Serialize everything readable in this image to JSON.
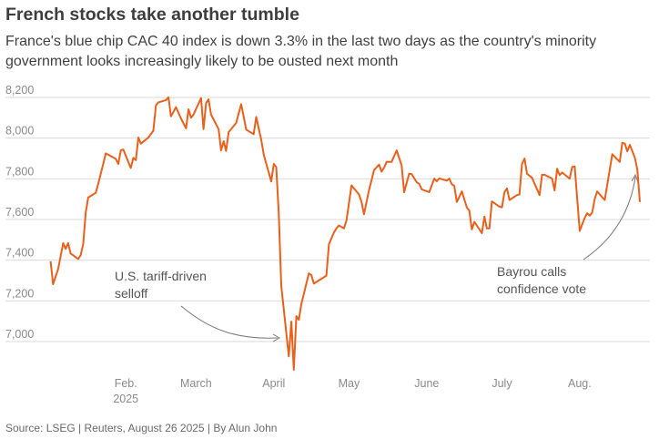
{
  "header": {
    "title": "French stocks take another tumble",
    "subtitle": "France's blue chip CAC 40 index is down 3.3% in the last two days as the country's minority government looks increasingly likely to be ousted next month"
  },
  "footer": {
    "source": "Source: LSEG | Reuters, August 26 2025 | By Alun John"
  },
  "colors": {
    "line": "#e8601c",
    "grid": "#d9d9d9",
    "annotation_arrow": "#777777"
  },
  "chart_data": {
    "type": "line",
    "title": "French stocks take another tumble",
    "xlabel": "",
    "ylabel": "",
    "x_units": "day of year 2025",
    "xlim": [
      -16,
      241
    ],
    "ylim": [
      6800,
      8200
    ],
    "grid": true,
    "y_ticks": [
      {
        "value": 8200,
        "label": "8,200"
      },
      {
        "value": 8000,
        "label": "8,000"
      },
      {
        "value": 7800,
        "label": "7,800"
      },
      {
        "value": 7600,
        "label": "7,600"
      },
      {
        "value": 7400,
        "label": "7,400"
      },
      {
        "value": 7200,
        "label": "7,200"
      },
      {
        "value": 7000,
        "label": "7,000"
      }
    ],
    "x_ticks": [
      {
        "value": 32,
        "label": "Feb.",
        "sublabel": "2025"
      },
      {
        "value": 60,
        "label": "March"
      },
      {
        "value": 91,
        "label": "April"
      },
      {
        "value": 121,
        "label": "May"
      },
      {
        "value": 152,
        "label": "June"
      },
      {
        "value": 182,
        "label": "July"
      },
      {
        "value": 213,
        "label": "Aug."
      }
    ],
    "series": [
      {
        "name": "CAC 40",
        "points": [
          [
            2,
            7395
          ],
          [
            3,
            7282
          ],
          [
            5,
            7357
          ],
          [
            7,
            7484
          ],
          [
            8,
            7456
          ],
          [
            9,
            7484
          ],
          [
            10,
            7433
          ],
          [
            13,
            7406
          ],
          [
            14,
            7424
          ],
          [
            15,
            7478
          ],
          [
            16,
            7635
          ],
          [
            17,
            7708
          ],
          [
            20,
            7731
          ],
          [
            21,
            7775
          ],
          [
            23,
            7873
          ],
          [
            24,
            7925
          ],
          [
            28,
            7898
          ],
          [
            29,
            7873
          ],
          [
            30,
            7940
          ],
          [
            31,
            7944
          ],
          [
            34,
            7853
          ],
          [
            35,
            7903
          ],
          [
            36,
            7892
          ],
          [
            37,
            8003
          ],
          [
            38,
            7973
          ],
          [
            41,
            8003
          ],
          [
            43,
            8037
          ],
          [
            44,
            8161
          ],
          [
            45,
            8176
          ],
          [
            48,
            8187
          ],
          [
            49,
            8201
          ],
          [
            50,
            8107
          ],
          [
            52,
            8152
          ],
          [
            54,
            8097
          ],
          [
            56,
            8048
          ],
          [
            57,
            8142
          ],
          [
            58,
            8100
          ],
          [
            59,
            8116
          ],
          [
            62,
            8197
          ],
          [
            63,
            8044
          ],
          [
            64,
            8172
          ],
          [
            65,
            8191
          ],
          [
            66,
            8116
          ],
          [
            69,
            8044
          ],
          [
            70,
            7940
          ],
          [
            71,
            7985
          ],
          [
            72,
            7937
          ],
          [
            73,
            8030
          ],
          [
            76,
            8074
          ],
          [
            78,
            8167
          ],
          [
            80,
            8042
          ],
          [
            83,
            8019
          ],
          [
            84,
            8104
          ],
          [
            86,
            7992
          ],
          [
            87,
            7918
          ],
          [
            90,
            7787
          ],
          [
            91,
            7873
          ],
          [
            92,
            7858
          ],
          [
            93,
            7626
          ],
          [
            94,
            7275
          ],
          [
            97,
            6927
          ],
          [
            98,
            7098
          ],
          [
            99,
            6861
          ],
          [
            100,
            7125
          ],
          [
            101,
            7107
          ],
          [
            102,
            7185
          ],
          [
            105,
            7335
          ],
          [
            106,
            7327
          ],
          [
            107,
            7285
          ],
          [
            112,
            7324
          ],
          [
            113,
            7479
          ],
          [
            115,
            7536
          ],
          [
            116,
            7556
          ],
          [
            117,
            7571
          ],
          [
            119,
            7556
          ],
          [
            120,
            7596
          ],
          [
            122,
            7768
          ],
          [
            125,
            7723
          ],
          [
            126,
            7686
          ],
          [
            127,
            7626
          ],
          [
            128,
            7686
          ],
          [
            129,
            7746
          ],
          [
            131,
            7843
          ],
          [
            133,
            7870
          ],
          [
            134,
            7835
          ],
          [
            135,
            7855
          ],
          [
            136,
            7883
          ],
          [
            138,
            7883
          ],
          [
            140,
            7940
          ],
          [
            141,
            7903
          ],
          [
            142,
            7865
          ],
          [
            143,
            7734
          ],
          [
            145,
            7825
          ],
          [
            146,
            7823
          ],
          [
            148,
            7783
          ],
          [
            149,
            7775
          ],
          [
            150,
            7748
          ],
          [
            153,
            7735
          ],
          [
            155,
            7801
          ],
          [
            156,
            7788
          ],
          [
            157,
            7802
          ],
          [
            160,
            7791
          ],
          [
            161,
            7801
          ],
          [
            162,
            7773
          ],
          [
            163,
            7765
          ],
          [
            164,
            7686
          ],
          [
            166,
            7738
          ],
          [
            168,
            7659
          ],
          [
            169,
            7644
          ],
          [
            170,
            7551
          ],
          [
            171,
            7589
          ],
          [
            174,
            7533
          ],
          [
            175,
            7614
          ],
          [
            176,
            7556
          ],
          [
            177,
            7556
          ],
          [
            178,
            7689
          ],
          [
            181,
            7663
          ],
          [
            182,
            7660
          ],
          [
            183,
            7734
          ],
          [
            184,
            7753
          ],
          [
            185,
            7696
          ],
          [
            188,
            7720
          ],
          [
            189,
            7723
          ],
          [
            190,
            7873
          ],
          [
            191,
            7900
          ],
          [
            192,
            7825
          ],
          [
            194,
            7805
          ],
          [
            197,
            7720
          ],
          [
            198,
            7820
          ],
          [
            199,
            7820
          ],
          [
            202,
            7801
          ],
          [
            203,
            7743
          ],
          [
            204,
            7850
          ],
          [
            205,
            7818
          ],
          [
            206,
            7831
          ],
          [
            209,
            7801
          ],
          [
            210,
            7858
          ],
          [
            211,
            7861
          ],
          [
            213,
            7544
          ],
          [
            215,
            7608
          ],
          [
            216,
            7631
          ],
          [
            217,
            7619
          ],
          [
            218,
            7634
          ],
          [
            219,
            7701
          ],
          [
            220,
            7738
          ],
          [
            223,
            7696
          ],
          [
            226,
            7921
          ],
          [
            229,
            7883
          ],
          [
            230,
            7977
          ],
          [
            231,
            7973
          ],
          [
            232,
            7935
          ],
          [
            233,
            7967
          ],
          [
            235,
            7903
          ],
          [
            236,
            7846
          ],
          [
            237,
            7686
          ]
        ]
      }
    ],
    "annotations": [
      {
        "lines": [
          "U.S. tariff-driven",
          "selloff"
        ],
        "points_to": [
          99,
          6980
        ]
      },
      {
        "lines": [
          "Bayrou calls",
          "confidence vote"
        ],
        "points_to": [
          235,
          7830
        ]
      }
    ]
  }
}
